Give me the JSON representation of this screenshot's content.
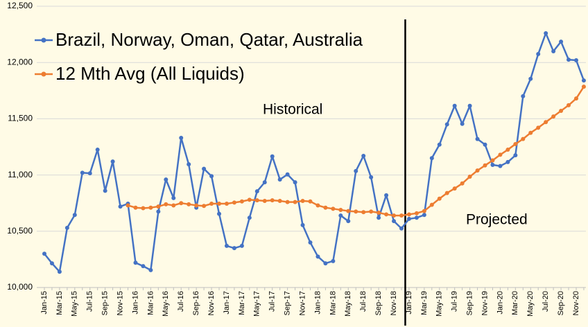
{
  "chart_data": {
    "type": "line",
    "categories": [
      "Jan-15",
      null,
      "Mar-15",
      null,
      "May-15",
      null,
      "Jul-15",
      null,
      "Sep-15",
      null,
      "Nov-15",
      null,
      "Jan-16",
      null,
      "Mar-16",
      null,
      "May-16",
      null,
      "Jul-16",
      null,
      "Sep-16",
      null,
      "Nov-16",
      null,
      "Jan-17",
      null,
      "Mar-17",
      null,
      "May-17",
      null,
      "Jul-17",
      null,
      "Sep-17",
      null,
      "Nov-17",
      null,
      "Jan-18",
      null,
      "Mar-18",
      null,
      "May-18",
      null,
      "Jul-18",
      null,
      "Sep-18",
      null,
      "Nov-18",
      null,
      "Jan-19",
      null,
      "Mar-19",
      null,
      "May-19",
      null,
      "Jul-19",
      null,
      "Sep-19",
      null,
      "Nov-19",
      null,
      "Jan-20",
      null,
      "Mar-20",
      null,
      "May-20",
      null,
      "Jul-20",
      null,
      "Sep-20",
      null,
      "Nov-20",
      null
    ],
    "series": [
      {
        "name": "Brazil, Norway, Oman, Qatar, Australia",
        "color": "#4472c4",
        "values": [
          10300,
          10215,
          10140,
          10530,
          10645,
          11020,
          11015,
          11225,
          10860,
          11120,
          10720,
          10745,
          10220,
          10190,
          10155,
          10675,
          10960,
          10795,
          11330,
          11095,
          10710,
          11055,
          10990,
          10655,
          10370,
          10350,
          10370,
          10620,
          10855,
          10935,
          11165,
          10960,
          11005,
          10935,
          10555,
          10400,
          10275,
          10215,
          10235,
          10640,
          10590,
          11035,
          11170,
          10980,
          10620,
          10820,
          10590,
          10525,
          10610,
          10620,
          10645,
          11150,
          11270,
          11450,
          11615,
          11455,
          11615,
          11320,
          11270,
          11090,
          11080,
          11115,
          11175,
          11700,
          11855,
          12075,
          12260,
          12100,
          12185,
          12025,
          12020,
          11840
        ]
      },
      {
        "name": "12 Mth Avg (All Liquids)",
        "color": "#ed7d31",
        "values": [
          null,
          null,
          null,
          null,
          null,
          null,
          null,
          null,
          null,
          null,
          null,
          10730,
          10710,
          10705,
          10710,
          10720,
          10740,
          10730,
          10750,
          10740,
          10730,
          10725,
          10745,
          10745,
          10745,
          10755,
          10765,
          10780,
          10775,
          10770,
          10775,
          10770,
          10760,
          10760,
          10770,
          10765,
          10730,
          10710,
          10700,
          10690,
          10680,
          10675,
          10670,
          10675,
          10665,
          10650,
          10640,
          10640,
          10650,
          10660,
          10680,
          10735,
          10790,
          10840,
          10880,
          10925,
          10985,
          11040,
          11085,
          11130,
          11180,
          11225,
          11275,
          11320,
          11375,
          11420,
          11470,
          11520,
          11570,
          11620,
          11680,
          11785
        ]
      }
    ],
    "annotations": [
      "Historical",
      "Projected"
    ],
    "ylim": [
      10000,
      12500
    ],
    "yticks": [
      {
        "value": 10000,
        "label": "10,000"
      },
      {
        "value": 10500,
        "label": "10,500"
      },
      {
        "value": 11000,
        "label": "11,000"
      },
      {
        "value": 11500,
        "label": "11,500"
      },
      {
        "value": 12000,
        "label": "12,000"
      },
      {
        "value": 12500,
        "label": "12,500"
      }
    ],
    "grid": true,
    "legend": "top-left"
  }
}
